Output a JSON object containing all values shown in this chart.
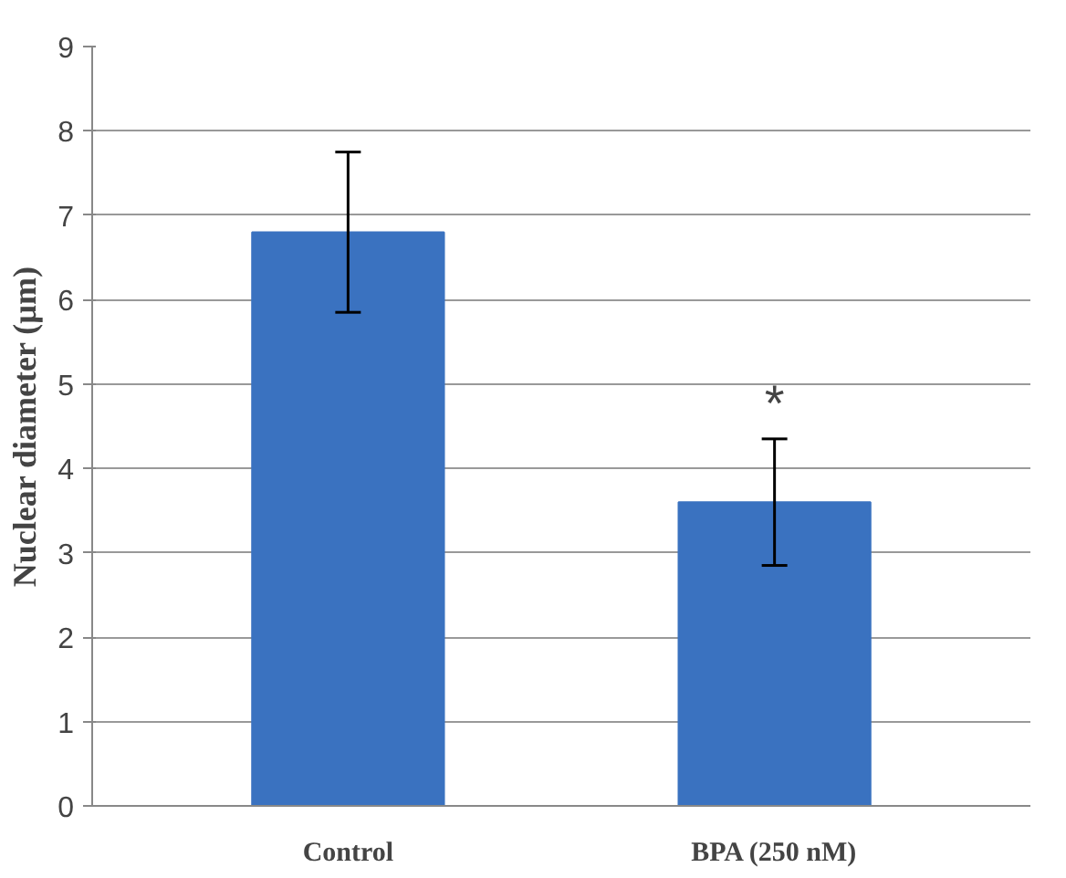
{
  "chart_data": {
    "type": "bar",
    "categories": [
      "Control",
      "BPA (250 nM)"
    ],
    "values": [
      6.8,
      3.6
    ],
    "errors": [
      0.95,
      0.75
    ],
    "color": "#3a72c0",
    "ylabel": "Nuclear diameter (µm)",
    "ylim": [
      0,
      9
    ],
    "yticks": [
      0,
      1,
      2,
      3,
      4,
      5,
      6,
      7,
      8,
      9
    ],
    "grid": "y",
    "annotations": [
      "*"
    ]
  }
}
